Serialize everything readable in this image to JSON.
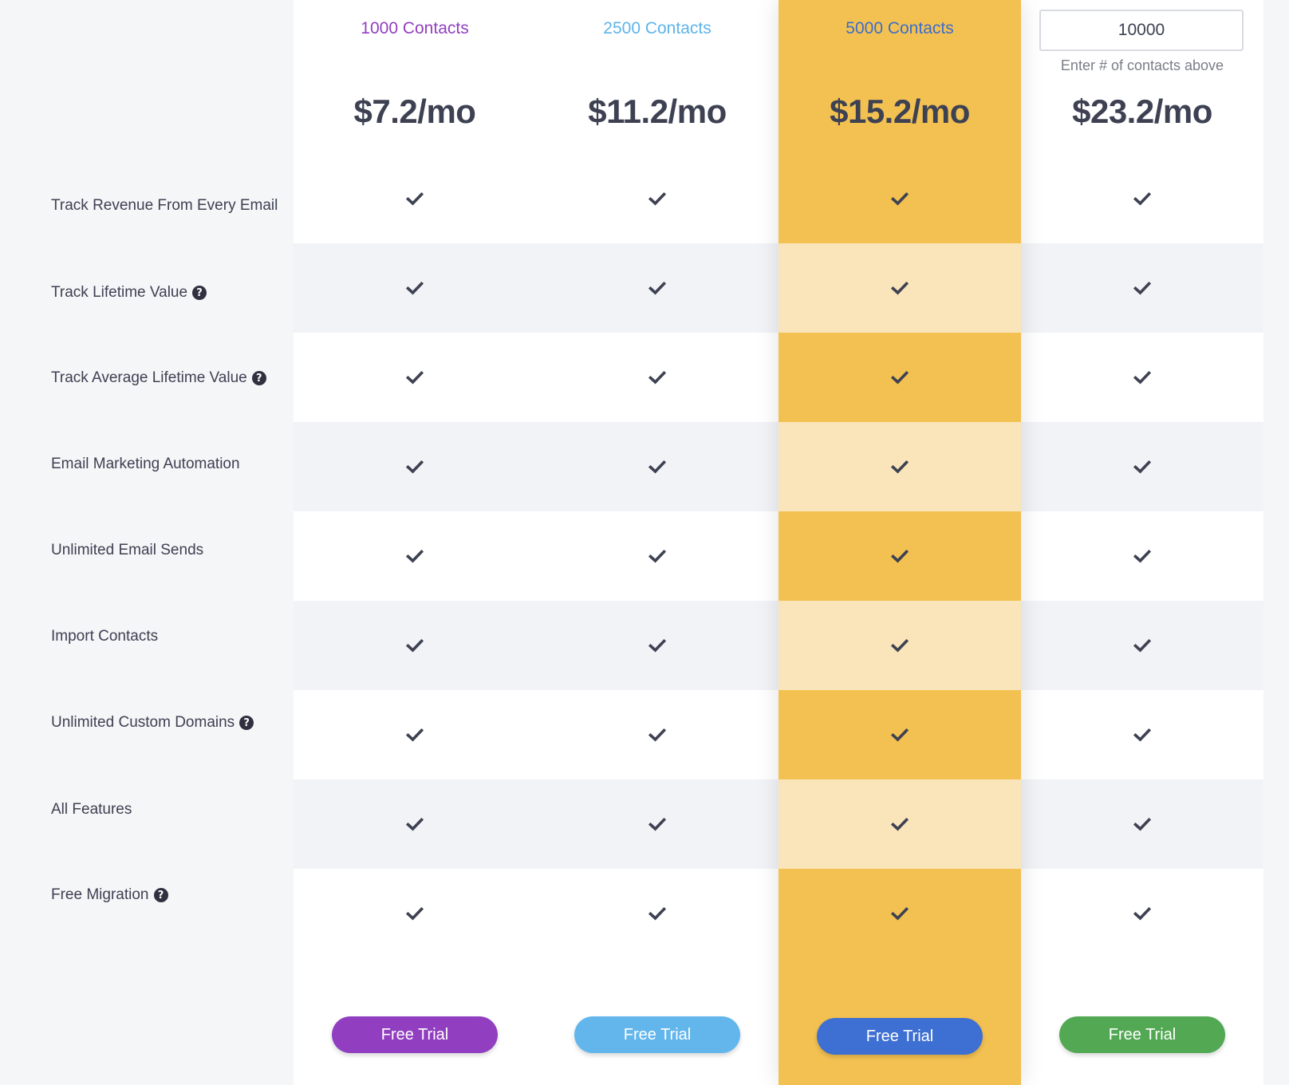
{
  "features": [
    {
      "label": "Track Revenue From Every Email",
      "help": false
    },
    {
      "label": "Track Lifetime Value",
      "help": true
    },
    {
      "label": "Track Average Lifetime Value",
      "help": true
    },
    {
      "label": "Email Marketing Automation",
      "help": false
    },
    {
      "label": "Unlimited Email Sends",
      "help": false
    },
    {
      "label": "Import Contacts",
      "help": false
    },
    {
      "label": "Unlimited Custom Domains",
      "help": true
    },
    {
      "label": "All Features",
      "help": false
    },
    {
      "label": "Free Migration",
      "help": true
    }
  ],
  "help_icon": "question-circle-icon",
  "plans": [
    {
      "title": "1000 Contacts",
      "title_color": "#913fc0",
      "price": "$7.2/mo",
      "button_label": "Free Trial",
      "button_color": "#913fc0",
      "featured": false
    },
    {
      "title": "2500 Contacts",
      "title_color": "#5eb4ea",
      "price": "$11.2/mo",
      "button_label": "Free Trial",
      "button_color": "#62b6ec",
      "featured": false
    },
    {
      "title": "5000 Contacts",
      "title_color": "#3e6dc9",
      "price": "$15.2/mo",
      "button_label": "Free Trial",
      "button_color": "#3e6fd2",
      "featured": true
    },
    {
      "custom": true,
      "input_value": "10000",
      "input_hint": "Enter # of contacts above",
      "price": "$23.2/mo",
      "button_label": "Free Trial",
      "button_color": "#52a853",
      "featured": false
    }
  ],
  "check_icon": "check-icon",
  "colors": {
    "featured_bg": "#f3c152",
    "featured_shaded": "#f9e5b9",
    "row_shaded": "#f2f3f6",
    "text": "#3d4152"
  }
}
